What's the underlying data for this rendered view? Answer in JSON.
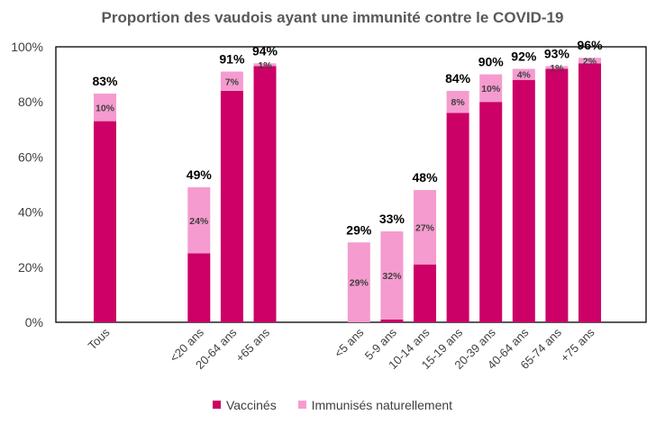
{
  "chart_data": {
    "type": "bar",
    "stacked": true,
    "title": "Proportion des vaudois ayant une immunité contre le COVID-19",
    "xlabel": "",
    "ylabel": "",
    "ylim": [
      0,
      100
    ],
    "y_ticks": [
      "0%",
      "20%",
      "40%",
      "60%",
      "80%",
      "100%"
    ],
    "grid": false,
    "legend_position": "bottom",
    "categories": [
      "Tous",
      "<20 ans",
      "20-64 ans",
      "+65 ans",
      "<5 ans",
      "5-9 ans",
      "10-14 ans",
      "15-19 ans",
      "20-39 ans",
      "40-64 ans",
      "65-74 ans",
      "+75 ans"
    ],
    "groups": [
      [
        0
      ],
      [
        1,
        2,
        3
      ],
      [
        4,
        5,
        6,
        7,
        8,
        9,
        10,
        11
      ]
    ],
    "series": [
      {
        "name": "Vaccinés",
        "color": "#cc0066",
        "values": [
          73,
          25,
          84,
          93,
          0,
          1,
          21,
          76,
          80,
          88,
          92,
          94
        ]
      },
      {
        "name": "Immunisés naturellement",
        "color": "#f59bcf",
        "values": [
          10,
          24,
          7,
          1,
          29,
          32,
          27,
          8,
          10,
          4,
          1,
          2
        ]
      }
    ],
    "natural_labels": [
      "10%",
      "24%",
      "7%",
      "1%",
      "29%",
      "32%",
      "27%",
      "8%",
      "10%",
      "4%",
      "1%",
      "2%"
    ],
    "totals": [
      "83%",
      "49%",
      "91%",
      "94%",
      "29%",
      "33%",
      "48%",
      "84%",
      "90%",
      "92%",
      "93%",
      "96%"
    ]
  }
}
